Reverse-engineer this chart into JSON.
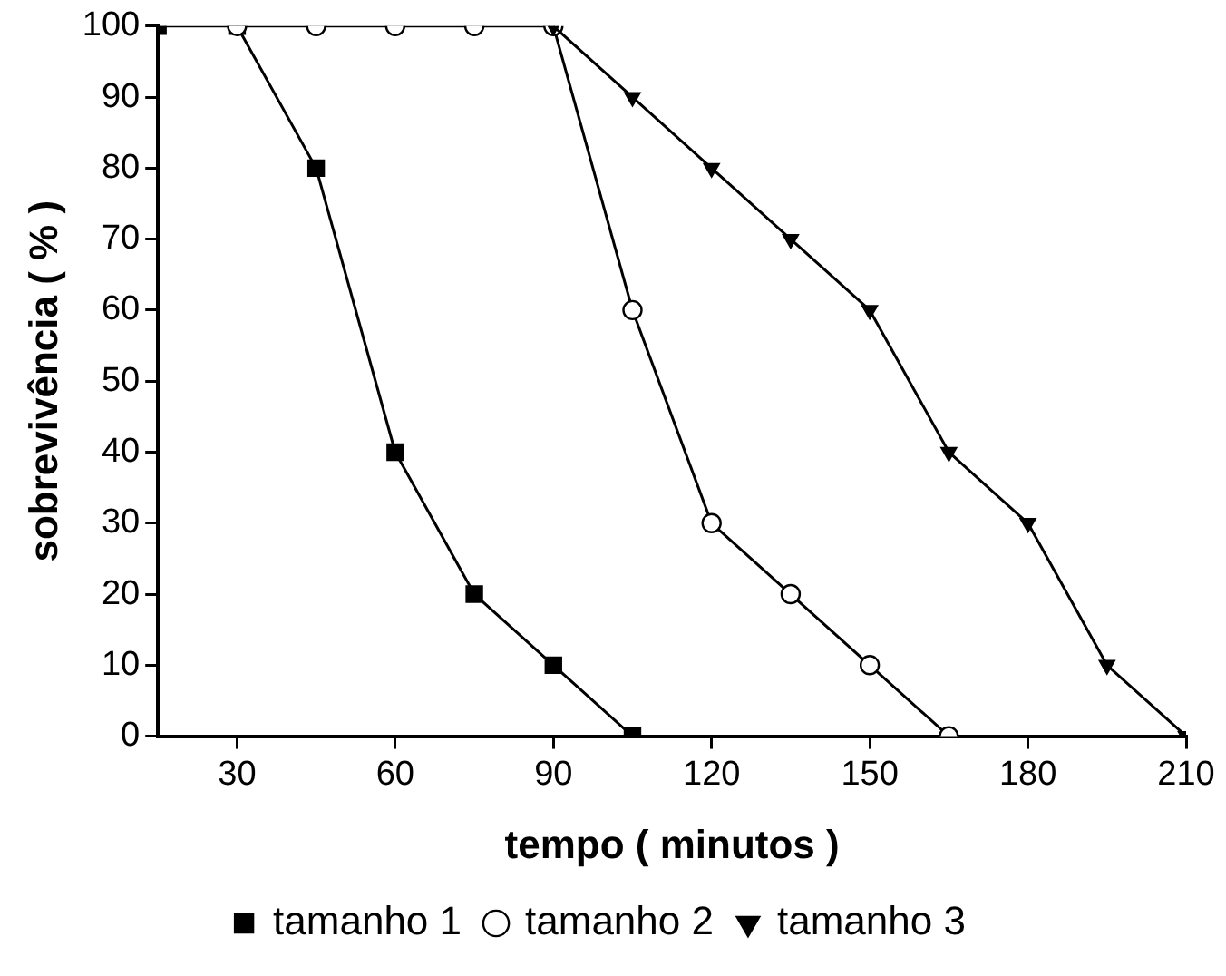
{
  "chart_data": {
    "type": "line",
    "xlabel": "tempo ( minutos )",
    "ylabel": "sobrevivência ( % )",
    "xlim": [
      15,
      210
    ],
    "xticks": [
      30,
      60,
      90,
      120,
      150,
      180,
      210
    ],
    "ylim": [
      0,
      100
    ],
    "yticks": [
      0,
      10,
      20,
      30,
      40,
      50,
      60,
      70,
      80,
      90,
      100
    ],
    "grid": false,
    "legend": "bottom",
    "line_style": "solid",
    "series": [
      {
        "name": "tamanho 1",
        "color": "#000000",
        "marker": "square",
        "x": [
          15,
          30,
          45,
          60,
          75,
          90,
          105
        ],
        "values": [
          100,
          100,
          80,
          40,
          20,
          10,
          0
        ]
      },
      {
        "name": "tamanho 2",
        "color": "#000000",
        "marker": "circle",
        "x": [
          30,
          45,
          60,
          75,
          90,
          105,
          120,
          135,
          150,
          165
        ],
        "values": [
          100,
          100,
          100,
          100,
          100,
          60,
          30,
          20,
          10,
          0
        ]
      },
      {
        "name": "tamanho 3",
        "color": "#000000",
        "marker": "triangle",
        "x": [
          90,
          105,
          120,
          135,
          150,
          165,
          180,
          195,
          210
        ],
        "values": [
          100,
          90,
          80,
          70,
          60,
          40,
          30,
          10,
          0
        ]
      }
    ]
  }
}
